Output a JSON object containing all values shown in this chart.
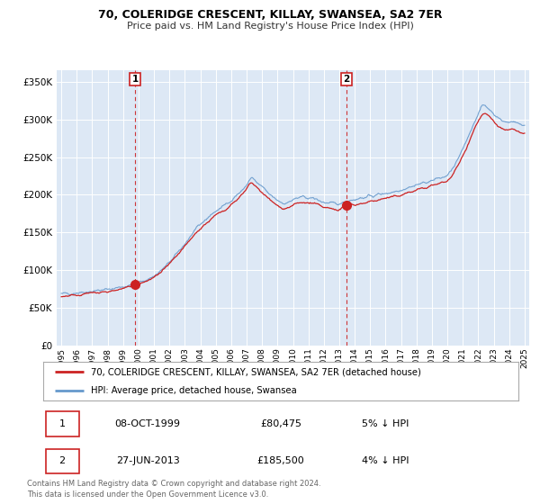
{
  "title": "70, COLERIDGE CRESCENT, KILLAY, SWANSEA, SA2 7ER",
  "subtitle": "Price paid vs. HM Land Registry's House Price Index (HPI)",
  "ylabel_ticks": [
    "£0",
    "£50K",
    "£100K",
    "£150K",
    "£200K",
    "£250K",
    "£300K",
    "£350K"
  ],
  "ytick_values": [
    0,
    50000,
    100000,
    150000,
    200000,
    250000,
    300000,
    350000
  ],
  "ylim": [
    0,
    365000
  ],
  "xlim_start": 1994.7,
  "xlim_end": 2025.3,
  "fig_bg_color": "#ffffff",
  "plot_bg_color": "#dde8f5",
  "plot_bg_outside": "#ffffff",
  "hpi_color": "#6699cc",
  "price_color": "#cc2222",
  "vline1_x": 1999.78,
  "vline2_x": 2013.48,
  "marker1_value": 80475,
  "marker2_value": 185500,
  "legend_line1": "70, COLERIDGE CRESCENT, KILLAY, SWANSEA, SA2 7ER (detached house)",
  "legend_line2": "HPI: Average price, detached house, Swansea",
  "table_row1": [
    "1",
    "08-OCT-1999",
    "£80,475",
    "5% ↓ HPI"
  ],
  "table_row2": [
    "2",
    "27-JUN-2013",
    "£185,500",
    "4% ↓ HPI"
  ],
  "footnote1": "Contains HM Land Registry data © Crown copyright and database right 2024.",
  "footnote2": "This data is licensed under the Open Government Licence v3.0.",
  "hpi_anchors_x": [
    1995.0,
    1995.5,
    1996.0,
    1996.5,
    1997.0,
    1997.5,
    1998.0,
    1998.5,
    1999.0,
    1999.5,
    2000.0,
    2000.5,
    2001.0,
    2001.5,
    2002.0,
    2002.5,
    2003.0,
    2003.5,
    2004.0,
    2004.5,
    2005.0,
    2005.5,
    2006.0,
    2006.5,
    2007.0,
    2007.3,
    2007.6,
    2008.0,
    2008.5,
    2009.0,
    2009.5,
    2010.0,
    2010.5,
    2011.0,
    2011.5,
    2012.0,
    2012.5,
    2013.0,
    2013.5,
    2014.0,
    2014.5,
    2015.0,
    2015.5,
    2016.0,
    2016.5,
    2017.0,
    2017.5,
    2018.0,
    2018.5,
    2019.0,
    2019.5,
    2020.0,
    2020.5,
    2021.0,
    2021.3,
    2021.6,
    2022.0,
    2022.3,
    2022.6,
    2023.0,
    2023.3,
    2023.6,
    2024.0,
    2024.3,
    2024.6,
    2025.0
  ],
  "hpi_anchors_y": [
    68000,
    69000,
    70000,
    71000,
    72000,
    73000,
    74000,
    76000,
    78000,
    80000,
    83000,
    87000,
    92000,
    100000,
    110000,
    122000,
    135000,
    148000,
    160000,
    170000,
    178000,
    185000,
    193000,
    202000,
    213000,
    222000,
    217000,
    210000,
    200000,
    193000,
    189000,
    193000,
    196000,
    196000,
    194000,
    190000,
    188000,
    188000,
    192000,
    194000,
    196000,
    198000,
    200000,
    202000,
    204000,
    207000,
    210000,
    213000,
    216000,
    219000,
    222000,
    226000,
    240000,
    260000,
    275000,
    290000,
    308000,
    318000,
    316000,
    308000,
    302000,
    298000,
    296000,
    298000,
    295000,
    292000
  ],
  "price_anchors_x": [
    1995.0,
    1995.5,
    1996.0,
    1996.5,
    1997.0,
    1997.5,
    1998.0,
    1998.5,
    1999.0,
    1999.5,
    1999.78,
    2000.0,
    2000.5,
    2001.0,
    2001.5,
    2002.0,
    2002.5,
    2003.0,
    2003.5,
    2004.0,
    2004.5,
    2005.0,
    2005.5,
    2006.0,
    2006.5,
    2007.0,
    2007.3,
    2007.6,
    2008.0,
    2008.5,
    2009.0,
    2009.5,
    2010.0,
    2010.5,
    2011.0,
    2011.5,
    2012.0,
    2012.5,
    2013.0,
    2013.48,
    2014.0,
    2014.5,
    2015.0,
    2015.5,
    2016.0,
    2016.5,
    2017.0,
    2017.5,
    2018.0,
    2018.5,
    2019.0,
    2019.5,
    2020.0,
    2020.5,
    2021.0,
    2021.3,
    2021.6,
    2022.0,
    2022.3,
    2022.6,
    2023.0,
    2023.3,
    2023.6,
    2024.0,
    2024.3,
    2024.6,
    2025.0
  ],
  "price_anchors_y": [
    65000,
    66000,
    67000,
    68000,
    69000,
    70000,
    71000,
    73000,
    75000,
    78000,
    80475,
    81000,
    85000,
    90000,
    98000,
    107000,
    119000,
    131000,
    144000,
    155000,
    164000,
    172000,
    179000,
    187000,
    196000,
    207000,
    215000,
    210000,
    203000,
    193000,
    185500,
    182000,
    186000,
    189000,
    189000,
    187000,
    183000,
    181000,
    181000,
    185500,
    187000,
    189000,
    191000,
    193000,
    195000,
    197000,
    200000,
    203000,
    206000,
    209000,
    212000,
    215000,
    219000,
    232000,
    252000,
    266000,
    281000,
    298000,
    307000,
    305000,
    297000,
    291000,
    287000,
    285000,
    287000,
    284000,
    281000
  ]
}
